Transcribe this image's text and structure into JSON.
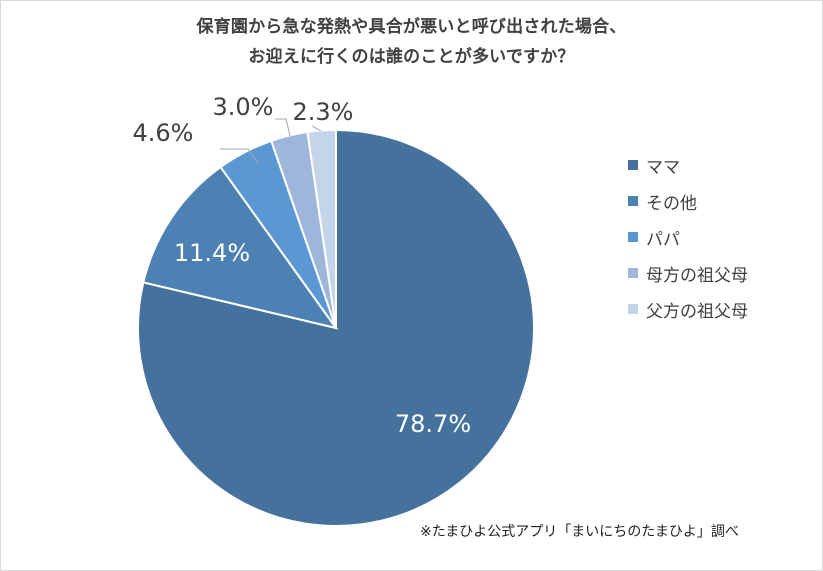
{
  "chart_data": {
    "type": "pie",
    "title_lines": [
      "保育園から急な発熱や具合が悪いと呼び出された場合、",
      "お迎えに行くのは誰のことが多いですか？"
    ],
    "categories": [
      "ママ",
      "その他",
      "パパ",
      "母方の祖父母",
      "父方の祖父母"
    ],
    "values": [
      78.7,
      11.4,
      4.6,
      3.0,
      2.3
    ],
    "data_labels": [
      "78.7%",
      "11.4%",
      "4.6%",
      "3.0%",
      "2.3%"
    ],
    "colors": [
      "#45729d",
      "#4d80b3",
      "#5b97d3",
      "#9db6da",
      "#c5d5e9"
    ],
    "start_angle": "12 o'clock",
    "direction": "clockwise",
    "legend_position": "right"
  },
  "source_note": "※たまひよ公式アプリ「まいにちのたまひよ」調べ"
}
